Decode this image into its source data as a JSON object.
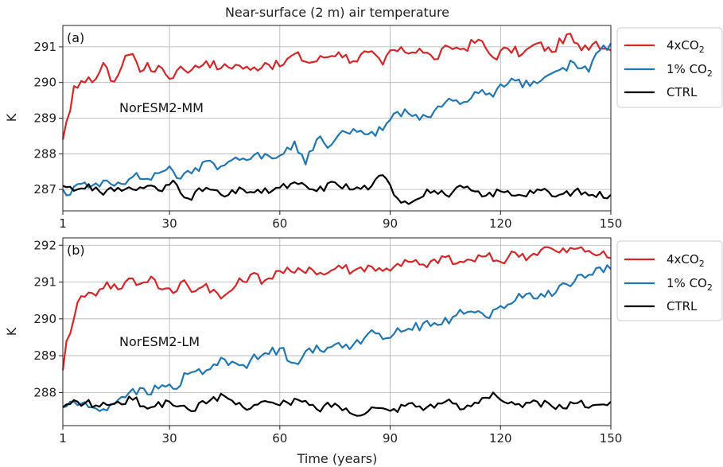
{
  "figure_title": "Near-surface (2 m) air temperature",
  "legend_entries": {
    "4x": {
      "pre": "4xCO",
      "sub": "2"
    },
    "1pct": {
      "pre": "1% CO",
      "sub": "2"
    },
    "ctrl": {
      "pre": "CTRL",
      "sub": ""
    }
  },
  "chart_data": [
    {
      "type": "line",
      "panel": "(a)",
      "model": "NorESM2-MM",
      "title": "Near-surface (2 m) air temperature",
      "xlabel": "",
      "ylabel": "K",
      "xlim": [
        1,
        150
      ],
      "ylim": [
        286.4,
        291.6
      ],
      "xticks": [
        1,
        30,
        60,
        90,
        120,
        150
      ],
      "yticks": [
        287,
        288,
        289,
        290,
        291
      ],
      "grid": true,
      "legend_position": "outside-right",
      "series": [
        {
          "name": "4xCO2",
          "color": "#d62728",
          "key": [
            [
              1,
              288.4
            ],
            [
              3,
              289.2
            ],
            [
              4,
              289.9
            ],
            [
              5,
              289.85
            ],
            [
              7,
              290.0
            ],
            [
              8,
              290.15
            ],
            [
              10,
              290.1
            ],
            [
              12,
              290.55
            ],
            [
              14,
              290.05
            ],
            [
              16,
              290.2
            ],
            [
              18,
              290.75
            ],
            [
              20,
              290.8
            ],
            [
              22,
              290.3
            ],
            [
              24,
              290.55
            ],
            [
              26,
              290.3
            ],
            [
              28,
              290.4
            ],
            [
              30,
              290.1
            ],
            [
              33,
              290.45
            ],
            [
              36,
              290.35
            ],
            [
              40,
              290.6
            ],
            [
              44,
              290.4
            ],
            [
              48,
              290.5
            ],
            [
              52,
              290.35
            ],
            [
              56,
              290.55
            ],
            [
              60,
              290.45
            ],
            [
              64,
              290.8
            ],
            [
              68,
              290.55
            ],
            [
              72,
              290.7
            ],
            [
              76,
              290.85
            ],
            [
              80,
              290.6
            ],
            [
              84,
              290.85
            ],
            [
              88,
              290.5
            ],
            [
              90,
              290.9
            ],
            [
              94,
              290.85
            ],
            [
              98,
              290.95
            ],
            [
              102,
              290.65
            ],
            [
              106,
              291.0
            ],
            [
              110,
              290.95
            ],
            [
              114,
              291.2
            ],
            [
              118,
              290.7
            ],
            [
              122,
              290.95
            ],
            [
              126,
              290.8
            ],
            [
              130,
              291.1
            ],
            [
              134,
              290.85
            ],
            [
              138,
              291.35
            ],
            [
              142,
              290.9
            ],
            [
              146,
              291.15
            ],
            [
              150,
              290.9
            ]
          ]
        },
        {
          "name": "1% CO2",
          "color": "#1f77b4",
          "key": [
            [
              1,
              287.0
            ],
            [
              3,
              286.85
            ],
            [
              5,
              287.15
            ],
            [
              8,
              287.05
            ],
            [
              12,
              287.25
            ],
            [
              16,
              287.2
            ],
            [
              20,
              287.35
            ],
            [
              24,
              287.3
            ],
            [
              28,
              287.5
            ],
            [
              30,
              287.65
            ],
            [
              33,
              287.3
            ],
            [
              36,
              287.45
            ],
            [
              40,
              287.8
            ],
            [
              44,
              287.65
            ],
            [
              48,
              287.9
            ],
            [
              52,
              287.85
            ],
            [
              56,
              288.0
            ],
            [
              60,
              287.95
            ],
            [
              64,
              288.35
            ],
            [
              67,
              287.7
            ],
            [
              70,
              288.4
            ],
            [
              74,
              288.25
            ],
            [
              78,
              288.6
            ],
            [
              82,
              288.65
            ],
            [
              86,
              288.5
            ],
            [
              90,
              288.95
            ],
            [
              94,
              289.25
            ],
            [
              98,
              288.95
            ],
            [
              102,
              289.2
            ],
            [
              106,
              289.55
            ],
            [
              110,
              289.45
            ],
            [
              114,
              289.7
            ],
            [
              118,
              289.6
            ],
            [
              120,
              289.95
            ],
            [
              124,
              290.05
            ],
            [
              128,
              289.9
            ],
            [
              132,
              290.15
            ],
            [
              136,
              290.35
            ],
            [
              140,
              290.55
            ],
            [
              144,
              290.3
            ],
            [
              147,
              290.9
            ],
            [
              150,
              291.1
            ]
          ]
        },
        {
          "name": "CTRL",
          "color": "#000000",
          "key": [
            [
              1,
              287.1
            ],
            [
              5,
              287.0
            ],
            [
              8,
              287.15
            ],
            [
              12,
              286.85
            ],
            [
              16,
              287.05
            ],
            [
              20,
              287.0
            ],
            [
              24,
              287.1
            ],
            [
              28,
              286.95
            ],
            [
              31,
              287.25
            ],
            [
              35,
              286.75
            ],
            [
              40,
              287.05
            ],
            [
              45,
              286.8
            ],
            [
              50,
              287.0
            ],
            [
              55,
              286.9
            ],
            [
              60,
              287.05
            ],
            [
              65,
              287.15
            ],
            [
              70,
              286.95
            ],
            [
              75,
              287.2
            ],
            [
              80,
              287.0
            ],
            [
              85,
              287.1
            ],
            [
              88,
              287.4
            ],
            [
              92,
              286.75
            ],
            [
              96,
              286.65
            ],
            [
              100,
              287.0
            ],
            [
              105,
              286.85
            ],
            [
              110,
              287.05
            ],
            [
              115,
              286.8
            ],
            [
              120,
              286.95
            ],
            [
              125,
              286.85
            ],
            [
              130,
              287.0
            ],
            [
              135,
              286.8
            ],
            [
              140,
              286.95
            ],
            [
              145,
              286.85
            ],
            [
              150,
              286.85
            ]
          ]
        }
      ]
    },
    {
      "type": "line",
      "panel": "(b)",
      "model": "NorESM2-LM",
      "xlabel": "Time (years)",
      "ylabel": "K",
      "xlim": [
        1,
        150
      ],
      "ylim": [
        287.1,
        292.2
      ],
      "xticks": [
        1,
        30,
        60,
        90,
        120,
        150
      ],
      "yticks": [
        288,
        289,
        290,
        291,
        292
      ],
      "grid": true,
      "legend_position": "outside-right",
      "series": [
        {
          "name": "4xCO2",
          "color": "#d62728",
          "key": [
            [
              1,
              288.6
            ],
            [
              2,
              289.4
            ],
            [
              4,
              290.0
            ],
            [
              5,
              290.45
            ],
            [
              7,
              290.6
            ],
            [
              9,
              290.7
            ],
            [
              11,
              290.8
            ],
            [
              13,
              291.0
            ],
            [
              16,
              290.8
            ],
            [
              19,
              291.1
            ],
            [
              22,
              290.95
            ],
            [
              25,
              291.15
            ],
            [
              28,
              290.8
            ],
            [
              31,
              290.7
            ],
            [
              34,
              291.05
            ],
            [
              37,
              290.75
            ],
            [
              40,
              290.95
            ],
            [
              44,
              290.55
            ],
            [
              48,
              290.9
            ],
            [
              52,
              291.2
            ],
            [
              56,
              291.05
            ],
            [
              60,
              291.3
            ],
            [
              64,
              291.25
            ],
            [
              68,
              291.4
            ],
            [
              72,
              291.2
            ],
            [
              76,
              291.45
            ],
            [
              80,
              291.3
            ],
            [
              84,
              291.45
            ],
            [
              88,
              291.3
            ],
            [
              92,
              291.5
            ],
            [
              96,
              291.55
            ],
            [
              100,
              291.4
            ],
            [
              104,
              291.7
            ],
            [
              108,
              291.5
            ],
            [
              112,
              291.6
            ],
            [
              116,
              291.7
            ],
            [
              120,
              291.55
            ],
            [
              124,
              291.8
            ],
            [
              128,
              291.7
            ],
            [
              132,
              291.95
            ],
            [
              136,
              291.8
            ],
            [
              140,
              291.9
            ],
            [
              144,
              291.85
            ],
            [
              147,
              291.75
            ],
            [
              150,
              291.65
            ]
          ]
        },
        {
          "name": "1% CO2",
          "color": "#1f77b4",
          "key": [
            [
              1,
              287.6
            ],
            [
              4,
              287.75
            ],
            [
              8,
              287.6
            ],
            [
              12,
              287.55
            ],
            [
              16,
              287.8
            ],
            [
              20,
              288.1
            ],
            [
              24,
              287.95
            ],
            [
              28,
              288.2
            ],
            [
              31,
              288.1
            ],
            [
              35,
              288.5
            ],
            [
              40,
              288.6
            ],
            [
              45,
              288.9
            ],
            [
              50,
              288.75
            ],
            [
              55,
              289.0
            ],
            [
              60,
              289.2
            ],
            [
              64,
              288.8
            ],
            [
              68,
              289.2
            ],
            [
              72,
              289.1
            ],
            [
              76,
              289.35
            ],
            [
              80,
              289.3
            ],
            [
              84,
              289.6
            ],
            [
              88,
              289.45
            ],
            [
              92,
              289.75
            ],
            [
              96,
              289.7
            ],
            [
              100,
              289.95
            ],
            [
              104,
              289.85
            ],
            [
              108,
              290.1
            ],
            [
              112,
              290.2
            ],
            [
              116,
              290.05
            ],
            [
              120,
              290.35
            ],
            [
              124,
              290.5
            ],
            [
              128,
              290.7
            ],
            [
              132,
              290.6
            ],
            [
              136,
              290.9
            ],
            [
              140,
              291.0
            ],
            [
              144,
              291.2
            ],
            [
              147,
              291.4
            ],
            [
              150,
              291.35
            ]
          ]
        },
        {
          "name": "CTRL",
          "color": "#000000",
          "key": [
            [
              1,
              287.6
            ],
            [
              5,
              287.75
            ],
            [
              10,
              287.65
            ],
            [
              15,
              287.7
            ],
            [
              20,
              287.8
            ],
            [
              25,
              287.6
            ],
            [
              30,
              287.75
            ],
            [
              35,
              287.55
            ],
            [
              40,
              287.7
            ],
            [
              45,
              287.9
            ],
            [
              50,
              287.6
            ],
            [
              55,
              287.75
            ],
            [
              60,
              287.65
            ],
            [
              65,
              287.8
            ],
            [
              70,
              287.55
            ],
            [
              75,
              287.7
            ],
            [
              80,
              287.4
            ],
            [
              85,
              287.6
            ],
            [
              90,
              287.5
            ],
            [
              95,
              287.7
            ],
            [
              100,
              287.6
            ],
            [
              105,
              287.75
            ],
            [
              110,
              287.55
            ],
            [
              115,
              287.85
            ],
            [
              118,
              288.0
            ],
            [
              122,
              287.7
            ],
            [
              126,
              287.6
            ],
            [
              130,
              287.75
            ],
            [
              135,
              287.55
            ],
            [
              140,
              287.7
            ],
            [
              145,
              287.65
            ],
            [
              150,
              287.75
            ]
          ]
        }
      ]
    }
  ]
}
